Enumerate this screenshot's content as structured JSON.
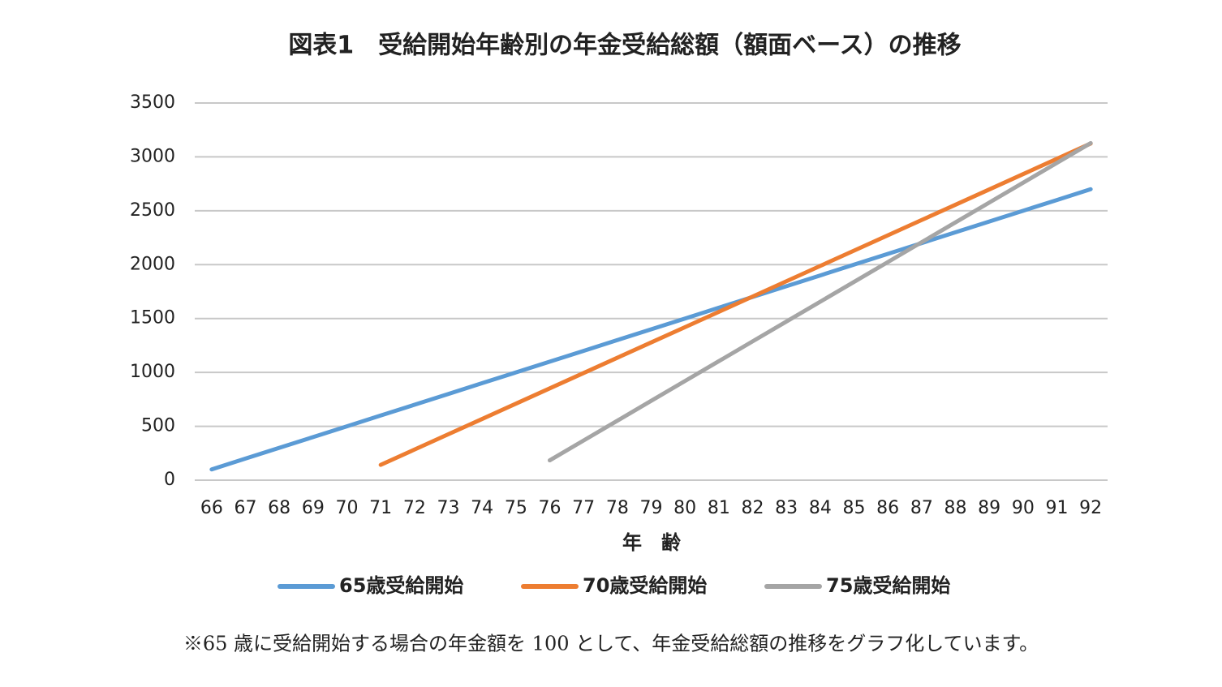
{
  "chart_data": {
    "type": "line",
    "title": "図表1　受給開始年齢別の年金受給総額（額面ベース）の推移",
    "x_label": "年　齢",
    "note": "※65 歳に受給開始する場合の年金額を 100 として、年金受給総額の推移をグラフ化しています。",
    "categories": [
      "66",
      "67",
      "68",
      "69",
      "70",
      "71",
      "72",
      "73",
      "74",
      "75",
      "76",
      "77",
      "78",
      "79",
      "80",
      "81",
      "82",
      "83",
      "84",
      "85",
      "86",
      "87",
      "88",
      "89",
      "90",
      "91",
      "92"
    ],
    "series": [
      {
        "name": "65歳受給開始",
        "color": "#5b9bd5",
        "values": [
          100,
          200,
          300,
          400,
          500,
          600,
          700,
          800,
          900,
          1000,
          1100,
          1200,
          1300,
          1400,
          1500,
          1600,
          1700,
          1800,
          1900,
          2000,
          2100,
          2200,
          2300,
          2400,
          2500,
          2600,
          2700
        ]
      },
      {
        "name": "70歳受給開始",
        "color": "#ed7d31",
        "values": [
          null,
          null,
          null,
          null,
          null,
          142,
          284,
          426,
          568,
          710,
          852,
          994,
          1136,
          1278,
          1420,
          1562,
          1704,
          1846,
          1988,
          2130,
          2272,
          2414,
          2556,
          2698,
          2840,
          2982,
          3124
        ]
      },
      {
        "name": "75歳受給開始",
        "color": "#a5a5a5",
        "values": [
          null,
          null,
          null,
          null,
          null,
          null,
          null,
          null,
          null,
          null,
          184,
          368,
          552,
          736,
          920,
          1104,
          1288,
          1472,
          1656,
          1840,
          2024,
          2208,
          2392,
          2576,
          2760,
          2944,
          3128
        ]
      }
    ],
    "ylim": [
      0,
      3500
    ],
    "yticks": [
      0,
      500,
      1000,
      1500,
      2000,
      2500,
      3000,
      3500
    ],
    "grid": true,
    "legend": "bottom"
  }
}
